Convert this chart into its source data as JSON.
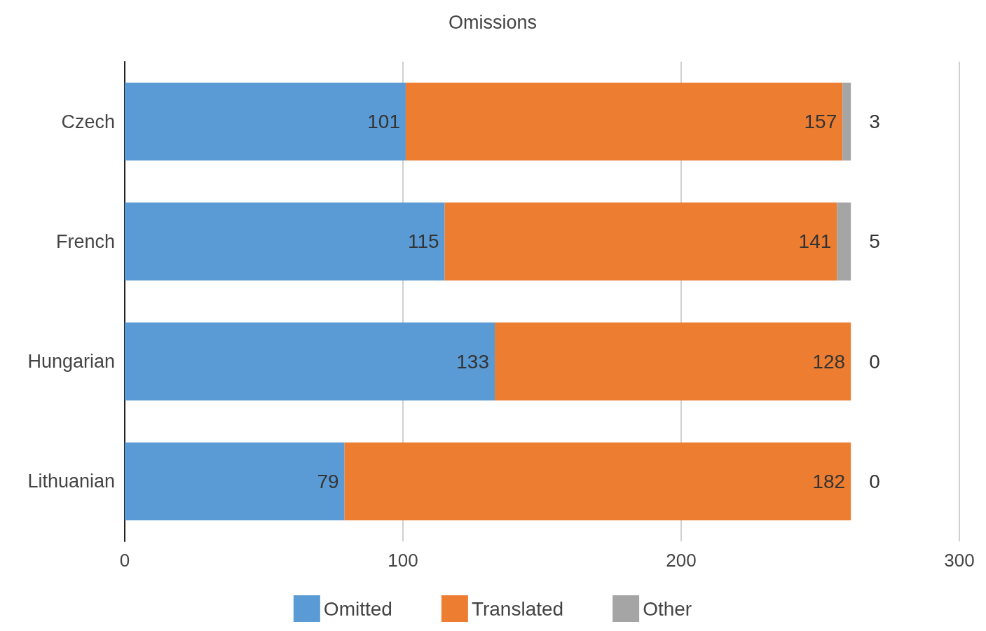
{
  "chart_data": {
    "type": "bar",
    "title": "Omissions",
    "orientation": "horizontal",
    "stacked": true,
    "categories": [
      "Czech",
      "French",
      "Hungarian",
      "Lithuanian"
    ],
    "series": [
      {
        "name": "Omitted",
        "color": "#5b9bd5",
        "values": [
          101,
          115,
          133,
          79
        ]
      },
      {
        "name": "Translated",
        "color": "#ed7d31",
        "values": [
          157,
          141,
          128,
          182
        ]
      },
      {
        "name": "Other",
        "color": "#a5a5a5",
        "values": [
          3,
          5,
          0,
          0
        ]
      }
    ],
    "xlim": [
      0,
      300
    ],
    "xticks": [
      0,
      100,
      200,
      300
    ],
    "grid": "x",
    "legend": "bottom",
    "data_labels": true
  }
}
